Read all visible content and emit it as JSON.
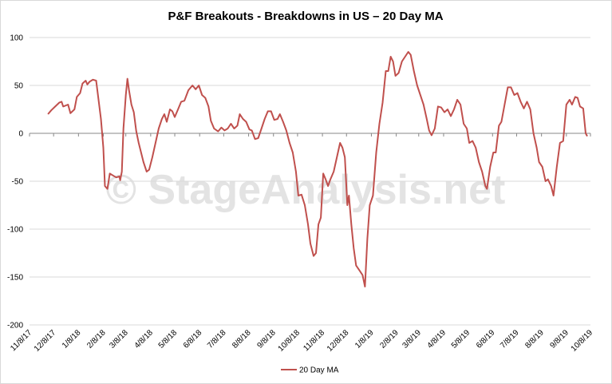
{
  "chart_data": {
    "type": "line",
    "title": "P&F Breakouts - Breakdowns in US – 20 Day MA",
    "watermark": "© StageAnalysis.net",
    "xlim": [
      "11/8/17",
      "10/8/19"
    ],
    "xticks": [
      "11/8/17",
      "12/8/17",
      "1/8/18",
      "2/8/18",
      "3/8/18",
      "4/8/18",
      "5/8/18",
      "6/8/18",
      "7/8/18",
      "8/8/18",
      "9/8/18",
      "10/8/18",
      "11/8/18",
      "12/8/18",
      "1/8/19",
      "2/8/19",
      "3/8/19",
      "4/8/19",
      "5/8/19",
      "6/8/19",
      "7/8/19",
      "8/8/19",
      "9/8/19",
      "10/8/19"
    ],
    "ylim": [
      -200,
      100
    ],
    "yticks": [
      -200,
      -150,
      -100,
      -50,
      0,
      50,
      100
    ],
    "grid": true,
    "legend": "bottom",
    "x": [
      "12/1/17",
      "12/5/17",
      "12/10/17",
      "12/15/17",
      "12/18/17",
      "12/20/17",
      "12/26/17",
      "12/29/17",
      "1/3/18",
      "1/6/18",
      "1/10/18",
      "1/13/18",
      "1/17/18",
      "1/19/18",
      "1/22/18",
      "1/26/18",
      "1/30/18",
      "2/2/18",
      "2/5/18",
      "2/8/18",
      "2/10/18",
      "2/13/18",
      "2/16/18",
      "2/20/18",
      "2/24/18",
      "2/28/18",
      "3/1/18",
      "3/3/18",
      "3/5/18",
      "3/8/18",
      "3/10/18",
      "3/12/18",
      "3/15/18",
      "3/18/18",
      "3/21/18",
      "3/24/18",
      "3/27/18",
      "3/30/18",
      "4/3/18",
      "4/6/18",
      "4/10/18",
      "4/14/18",
      "4/18/18",
      "4/22/18",
      "4/25/18",
      "4/28/18",
      "5/2/18",
      "5/5/18",
      "5/8/18",
      "5/12/18",
      "5/16/18",
      "5/20/18",
      "5/25/18",
      "5/30/18",
      "6/3/18",
      "6/7/18",
      "6/11/18",
      "6/15/18",
      "6/19/18",
      "6/22/18",
      "6/26/18",
      "7/1/18",
      "7/5/18",
      "7/9/18",
      "7/13/18",
      "7/17/18",
      "7/21/18",
      "7/25/18",
      "7/28/18",
      "8/1/18",
      "8/5/18",
      "8/9/18",
      "8/12/18",
      "8/16/18",
      "8/20/18",
      "8/24/18",
      "8/28/18",
      "9/1/18",
      "9/5/18",
      "9/9/18",
      "9/13/18",
      "9/16/18",
      "9/20/18",
      "9/24/18",
      "9/28/18",
      "10/2/18",
      "10/6/18",
      "10/9/18",
      "10/13/18",
      "10/17/18",
      "10/21/18",
      "10/24/18",
      "10/28/18",
      "10/31/18",
      "11/3/18",
      "11/6/18",
      "11/9/18",
      "11/12/18",
      "11/15/18",
      "11/18/18",
      "11/22/18",
      "11/26/18",
      "11/30/18",
      "12/3/18",
      "12/6/18",
      "12/9/18",
      "12/11/18",
      "12/14/18",
      "12/17/18",
      "12/20/18",
      "12/24/18",
      "12/28/18",
      "12/31/18",
      "1/3/19",
      "1/6/19",
      "1/10/19",
      "1/14/19",
      "1/18/19",
      "1/22/19",
      "1/26/19",
      "1/29/19",
      "2/1/19",
      "2/4/19",
      "2/7/19",
      "2/11/19",
      "2/15/19",
      "2/19/19",
      "2/23/19",
      "2/26/19",
      "3/2/19",
      "3/6/19",
      "3/10/19",
      "3/14/19",
      "3/18/19",
      "3/21/19",
      "3/24/19",
      "3/28/19",
      "4/1/19",
      "4/5/19",
      "4/9/19",
      "4/13/19",
      "4/17/19",
      "4/21/19",
      "4/25/19",
      "4/29/19",
      "5/3/19",
      "5/7/19",
      "5/10/19",
      "5/14/19",
      "5/18/19",
      "5/22/19",
      "5/26/19",
      "5/30/19",
      "6/1/19",
      "6/5/19",
      "6/9/19",
      "6/12/19",
      "6/16/19",
      "6/19/19",
      "6/23/19",
      "6/27/19",
      "7/1/19",
      "7/5/19",
      "7/9/19",
      "7/13/19",
      "7/17/19",
      "7/21/19",
      "7/25/19",
      "7/29/19",
      "8/2/19",
      "8/5/19",
      "8/9/19",
      "8/13/19",
      "8/16/19",
      "8/20/19",
      "8/23/19",
      "8/27/19",
      "8/31/19",
      "9/4/19",
      "9/8/19",
      "9/12/19",
      "9/15/19",
      "9/19/19",
      "9/22/19",
      "9/25/19",
      "9/29/19",
      "10/2/19",
      "10/4/19"
    ],
    "series": [
      {
        "name": "20 Day MA",
        "color": "#c0504d",
        "values": [
          20,
          24,
          28,
          32,
          33,
          28,
          30,
          21,
          25,
          38,
          42,
          52,
          55,
          51,
          54,
          56,
          55,
          35,
          15,
          -15,
          -55,
          -58,
          -42,
          -44,
          -46,
          -45,
          -49,
          -40,
          5,
          40,
          57,
          45,
          30,
          22,
          2,
          -10,
          -20,
          -30,
          -40,
          -38,
          -25,
          -10,
          5,
          15,
          20,
          12,
          25,
          23,
          17,
          25,
          33,
          34,
          45,
          50,
          46,
          50,
          40,
          37,
          28,
          13,
          5,
          2,
          6,
          3,
          5,
          10,
          5,
          8,
          20,
          15,
          12,
          4,
          3,
          -6,
          -5,
          5,
          15,
          23,
          23,
          14,
          15,
          20,
          12,
          3,
          -10,
          -20,
          -40,
          -65,
          -64,
          -75,
          -95,
          -115,
          -128,
          -125,
          -95,
          -88,
          -42,
          -48,
          -55,
          -48,
          -40,
          -25,
          -10,
          -15,
          -25,
          -75,
          -65,
          -95,
          -120,
          -138,
          -143,
          -148,
          -160,
          -110,
          -75,
          -65,
          -20,
          10,
          32,
          65,
          65,
          80,
          75,
          60,
          63,
          75,
          80,
          85,
          82,
          65,
          50,
          40,
          30,
          15,
          3,
          -2,
          5,
          28,
          27,
          22,
          25,
          18,
          25,
          35,
          30,
          10,
          5,
          -10,
          -8,
          -15,
          -30,
          -40,
          -55,
          -58,
          -35,
          -20,
          -20,
          8,
          12,
          30,
          48,
          48,
          40,
          42,
          33,
          26,
          33,
          25,
          0,
          -15,
          -30,
          -35,
          -50,
          -48,
          -55,
          -65,
          -35,
          -10,
          -8,
          30,
          35,
          30,
          38,
          37,
          28,
          26,
          0,
          -3
        ]
      }
    ]
  }
}
